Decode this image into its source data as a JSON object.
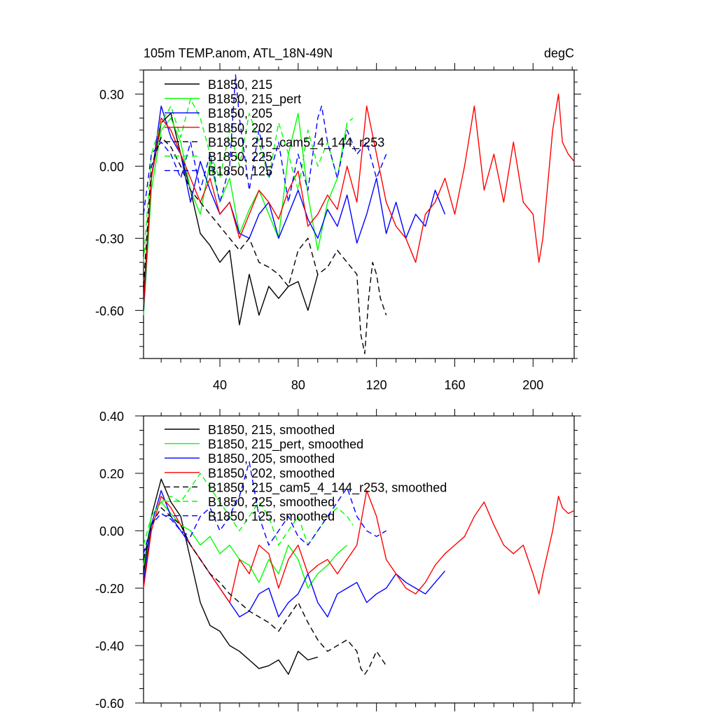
{
  "chart_data": [
    {
      "type": "line",
      "title": "105m TEMP.anom, ATL_18N-49N",
      "units": "degC",
      "xlabel": "",
      "ylabel": "",
      "xlim": [
        1,
        221
      ],
      "ylim": [
        -0.8,
        0.4
      ],
      "xticks": [
        40,
        80,
        120,
        160,
        200
      ],
      "xtick_labels": [
        "40",
        "80",
        "120",
        "160",
        "200"
      ],
      "yticks": [
        0.3,
        0.0,
        -0.3,
        -0.6
      ],
      "ytick_labels": [
        "0.30",
        "0.00",
        "-0.30",
        "-0.60"
      ],
      "legend_position": "top-left",
      "series": [
        {
          "name": "B1850, 215",
          "color": "#000000",
          "dash": "solid",
          "x": [
            1,
            5,
            10,
            15,
            20,
            25,
            30,
            35,
            40,
            45,
            50,
            55,
            60,
            65,
            70,
            75,
            80,
            85,
            90
          ],
          "y": [
            -0.55,
            -0.05,
            0.18,
            0.22,
            0.05,
            -0.1,
            -0.28,
            -0.33,
            -0.4,
            -0.35,
            -0.66,
            -0.45,
            -0.62,
            -0.5,
            -0.55,
            -0.5,
            -0.48,
            -0.6,
            -0.45
          ]
        },
        {
          "name": "B1850, 215_pert",
          "color": "#00ff00",
          "dash": "solid",
          "x": [
            1,
            5,
            10,
            15,
            20,
            25,
            30,
            35,
            40,
            45,
            50,
            55,
            60,
            65,
            70,
            75,
            80,
            85,
            90,
            95,
            100,
            105
          ],
          "y": [
            -0.62,
            -0.1,
            0.15,
            0.2,
            0.1,
            -0.1,
            -0.2,
            0.02,
            -0.15,
            -0.05,
            -0.28,
            -0.18,
            -0.1,
            -0.2,
            -0.3,
            0.05,
            0.22,
            -0.12,
            -0.35,
            -0.15,
            -0.05,
            0.18
          ]
        },
        {
          "name": "B1850, 205",
          "color": "#0000ff",
          "dash": "solid",
          "x": [
            1,
            5,
            10,
            15,
            20,
            25,
            30,
            35,
            40,
            45,
            50,
            55,
            60,
            65,
            70,
            75,
            80,
            85,
            90,
            95,
            100,
            105,
            110,
            115,
            120,
            125,
            130,
            135,
            140,
            145,
            150,
            155
          ],
          "y": [
            -0.6,
            -0.05,
            0.25,
            0.12,
            0.05,
            -0.15,
            0.02,
            -0.1,
            -0.2,
            -0.15,
            -0.28,
            -0.3,
            -0.2,
            -0.15,
            -0.3,
            -0.2,
            -0.1,
            -0.22,
            -0.3,
            -0.18,
            -0.25,
            -0.12,
            -0.32,
            -0.2,
            -0.05,
            -0.28,
            -0.15,
            -0.3,
            -0.2,
            -0.25,
            -0.1,
            -0.2
          ]
        },
        {
          "name": "B1850, 202",
          "color": "#ff0000",
          "dash": "solid",
          "x": [
            1,
            5,
            10,
            15,
            20,
            25,
            30,
            35,
            40,
            45,
            50,
            55,
            60,
            65,
            70,
            75,
            80,
            85,
            90,
            95,
            100,
            105,
            110,
            115,
            120,
            125,
            130,
            135,
            140,
            145,
            150,
            155,
            160,
            165,
            170,
            175,
            180,
            185,
            190,
            195,
            200,
            203,
            205,
            210,
            213,
            215,
            218,
            221
          ],
          "y": [
            -0.58,
            -0.05,
            0.2,
            0.15,
            0.05,
            -0.05,
            -0.15,
            -0.05,
            -0.2,
            -0.15,
            -0.3,
            -0.2,
            -0.1,
            -0.15,
            -0.22,
            -0.1,
            -0.02,
            -0.25,
            -0.2,
            -0.12,
            -0.18,
            0.0,
            -0.15,
            0.25,
            0.05,
            -0.15,
            -0.25,
            -0.3,
            -0.4,
            -0.2,
            -0.15,
            -0.05,
            -0.2,
            0.0,
            0.25,
            -0.1,
            0.05,
            -0.15,
            0.1,
            -0.15,
            -0.2,
            -0.4,
            -0.3,
            0.15,
            0.3,
            0.1,
            0.05,
            0.02
          ]
        },
        {
          "name": "B1850, 215_cam5_4_144_r253",
          "color": "#000000",
          "dash": "dashed",
          "x": [
            1,
            5,
            10,
            15,
            20,
            25,
            30,
            35,
            40,
            45,
            50,
            55,
            60,
            65,
            70,
            75,
            80,
            85,
            90,
            95,
            100,
            105,
            110,
            112,
            114,
            116,
            118,
            120,
            122,
            125
          ],
          "y": [
            -0.5,
            0.0,
            0.12,
            0.08,
            0.0,
            -0.1,
            -0.15,
            -0.2,
            -0.25,
            -0.3,
            -0.35,
            -0.3,
            -0.4,
            -0.42,
            -0.45,
            -0.5,
            -0.35,
            -0.3,
            -0.45,
            -0.42,
            -0.35,
            -0.4,
            -0.45,
            -0.7,
            -0.78,
            -0.55,
            -0.4,
            -0.45,
            -0.55,
            -0.62
          ]
        },
        {
          "name": "B1850, 225",
          "color": "#00ff00",
          "dash": "dashed",
          "x": [
            1,
            5,
            10,
            15,
            20,
            25,
            30,
            35,
            40,
            45,
            50,
            55,
            60,
            65,
            70,
            75,
            80,
            85,
            90,
            95,
            100,
            105,
            108
          ],
          "y": [
            -0.4,
            0.05,
            0.18,
            0.25,
            0.12,
            0.28,
            0.2,
            0.05,
            -0.05,
            0.15,
            0.0,
            0.22,
            0.1,
            -0.05,
            0.18,
            0.05,
            -0.1,
            0.15,
            0.0,
            0.1,
            -0.05,
            0.18,
            0.2
          ]
        },
        {
          "name": "B1850, 125",
          "color": "#0000ff",
          "dash": "dashed",
          "x": [
            1,
            5,
            10,
            15,
            20,
            25,
            30,
            35,
            40,
            45,
            48,
            50,
            55,
            60,
            65,
            70,
            75,
            80,
            85,
            90,
            92,
            95,
            100,
            105,
            110,
            115,
            120,
            125
          ],
          "y": [
            -0.2,
            0.05,
            0.1,
            0.05,
            -0.05,
            0.1,
            -0.1,
            0.05,
            -0.15,
            0.0,
            0.38,
            0.2,
            -0.1,
            0.15,
            -0.05,
            0.1,
            -0.15,
            0.05,
            -0.1,
            0.2,
            0.25,
            0.1,
            -0.05,
            0.15,
            0.05,
            0.1,
            -0.05,
            0.05
          ]
        }
      ]
    },
    {
      "type": "line",
      "title": "",
      "xlabel": "",
      "ylabel": "",
      "xlim": [
        1,
        221
      ],
      "ylim": [
        -0.6,
        0.4
      ],
      "xticks": [
        40,
        80,
        120,
        160,
        200
      ],
      "xtick_labels": [],
      "yticks": [
        0.4,
        0.2,
        0.0,
        -0.2,
        -0.4,
        -0.6
      ],
      "ytick_labels": [
        "0.40",
        "0.20",
        "0.00",
        "-0.20",
        "-0.40",
        "-0.60"
      ],
      "legend_position": "top-left",
      "series": [
        {
          "name": "B1850, 215, smoothed",
          "color": "#000000",
          "dash": "solid",
          "x": [
            1,
            5,
            10,
            15,
            20,
            25,
            30,
            35,
            40,
            45,
            50,
            55,
            60,
            65,
            70,
            75,
            80,
            85,
            90
          ],
          "y": [
            -0.15,
            0.05,
            0.18,
            0.1,
            0.05,
            -0.1,
            -0.25,
            -0.33,
            -0.35,
            -0.4,
            -0.42,
            -0.45,
            -0.48,
            -0.47,
            -0.45,
            -0.5,
            -0.42,
            -0.45,
            -0.44
          ]
        },
        {
          "name": "B1850, 215_pert, smoothed",
          "color": "#00ff00",
          "dash": "solid",
          "x": [
            1,
            5,
            10,
            15,
            20,
            25,
            30,
            35,
            40,
            45,
            50,
            55,
            60,
            65,
            70,
            75,
            80,
            85,
            90,
            95,
            100,
            105
          ],
          "y": [
            -0.12,
            0.05,
            0.1,
            0.06,
            0.02,
            0.0,
            -0.05,
            -0.02,
            -0.08,
            -0.05,
            -0.1,
            -0.12,
            -0.18,
            -0.1,
            -0.15,
            -0.05,
            -0.1,
            -0.2,
            -0.15,
            -0.12,
            -0.08,
            -0.05
          ]
        },
        {
          "name": "B1850, 205, smoothed",
          "color": "#0000ff",
          "dash": "solid",
          "x": [
            1,
            5,
            10,
            15,
            20,
            25,
            30,
            35,
            40,
            45,
            50,
            55,
            60,
            65,
            70,
            75,
            80,
            85,
            90,
            95,
            100,
            105,
            110,
            115,
            120,
            125,
            130,
            135,
            140,
            145,
            150,
            155
          ],
          "y": [
            -0.18,
            0.02,
            0.14,
            0.05,
            0.0,
            -0.05,
            -0.1,
            -0.15,
            -0.2,
            -0.25,
            -0.3,
            -0.28,
            -0.22,
            -0.2,
            -0.3,
            -0.25,
            -0.22,
            -0.15,
            -0.25,
            -0.3,
            -0.22,
            -0.2,
            -0.18,
            -0.25,
            -0.22,
            -0.2,
            -0.15,
            -0.18,
            -0.2,
            -0.22,
            -0.18,
            -0.14
          ]
        },
        {
          "name": "B1850, 202, smoothed",
          "color": "#ff0000",
          "dash": "solid",
          "x": [
            1,
            5,
            10,
            15,
            20,
            25,
            30,
            35,
            40,
            45,
            50,
            55,
            60,
            65,
            70,
            75,
            80,
            85,
            90,
            95,
            100,
            105,
            110,
            115,
            120,
            125,
            130,
            135,
            140,
            145,
            150,
            155,
            160,
            165,
            170,
            175,
            180,
            185,
            190,
            195,
            200,
            203,
            205,
            210,
            213,
            215,
            218,
            221
          ],
          "y": [
            -0.2,
            0.0,
            0.12,
            0.08,
            0.02,
            -0.05,
            -0.1,
            -0.15,
            -0.2,
            -0.25,
            -0.1,
            -0.15,
            -0.05,
            -0.08,
            -0.2,
            -0.1,
            -0.05,
            -0.15,
            -0.12,
            -0.1,
            -0.15,
            -0.1,
            -0.05,
            0.14,
            0.05,
            -0.1,
            -0.15,
            -0.2,
            -0.22,
            -0.18,
            -0.12,
            -0.08,
            -0.05,
            -0.02,
            0.05,
            0.1,
            0.02,
            -0.05,
            -0.08,
            -0.05,
            -0.15,
            -0.22,
            -0.15,
            0.0,
            0.12,
            0.08,
            0.06,
            0.07
          ]
        },
        {
          "name": "B1850, 215_cam5_4_144_r253, smoothed",
          "color": "#000000",
          "dash": "dashed",
          "x": [
            1,
            5,
            10,
            15,
            20,
            25,
            30,
            35,
            40,
            45,
            50,
            55,
            60,
            65,
            70,
            75,
            80,
            85,
            90,
            95,
            100,
            105,
            110,
            112,
            114,
            116,
            118,
            120,
            122,
            125
          ],
          "y": [
            -0.1,
            0.02,
            0.08,
            0.05,
            0.02,
            -0.05,
            -0.1,
            -0.15,
            -0.18,
            -0.22,
            -0.25,
            -0.28,
            -0.3,
            -0.32,
            -0.35,
            -0.3,
            -0.25,
            -0.32,
            -0.38,
            -0.42,
            -0.4,
            -0.38,
            -0.42,
            -0.48,
            -0.5,
            -0.48,
            -0.45,
            -0.42,
            -0.44,
            -0.47
          ]
        },
        {
          "name": "B1850, 225, smoothed",
          "color": "#00ff00",
          "dash": "dashed",
          "x": [
            1,
            5,
            10,
            15,
            20,
            25,
            30,
            35,
            40,
            45,
            50,
            55,
            60,
            65,
            70,
            75,
            80,
            85,
            90,
            95,
            100,
            105,
            108
          ],
          "y": [
            -0.05,
            0.05,
            0.1,
            0.12,
            0.1,
            0.15,
            0.2,
            0.15,
            0.1,
            0.05,
            0.0,
            0.05,
            0.1,
            0.05,
            -0.05,
            0.0,
            0.05,
            -0.05,
            0.0,
            0.05,
            0.08,
            0.05,
            0.02
          ]
        },
        {
          "name": "B1850, 125, smoothed",
          "color": "#0000ff",
          "dash": "dashed",
          "x": [
            1,
            5,
            10,
            15,
            20,
            25,
            30,
            35,
            40,
            45,
            48,
            50,
            55,
            60,
            65,
            70,
            75,
            80,
            85,
            90,
            92,
            95,
            100,
            105,
            110,
            115,
            120,
            125
          ],
          "y": [
            -0.08,
            0.02,
            0.06,
            0.04,
            0.0,
            -0.02,
            0.05,
            0.08,
            0.0,
            0.05,
            0.1,
            0.12,
            0.24,
            0.05,
            -0.05,
            0.0,
            0.05,
            -0.02,
            -0.05,
            0.0,
            0.02,
            0.05,
            0.1,
            0.15,
            0.05,
            0.0,
            -0.02,
            0.0
          ]
        }
      ]
    }
  ]
}
